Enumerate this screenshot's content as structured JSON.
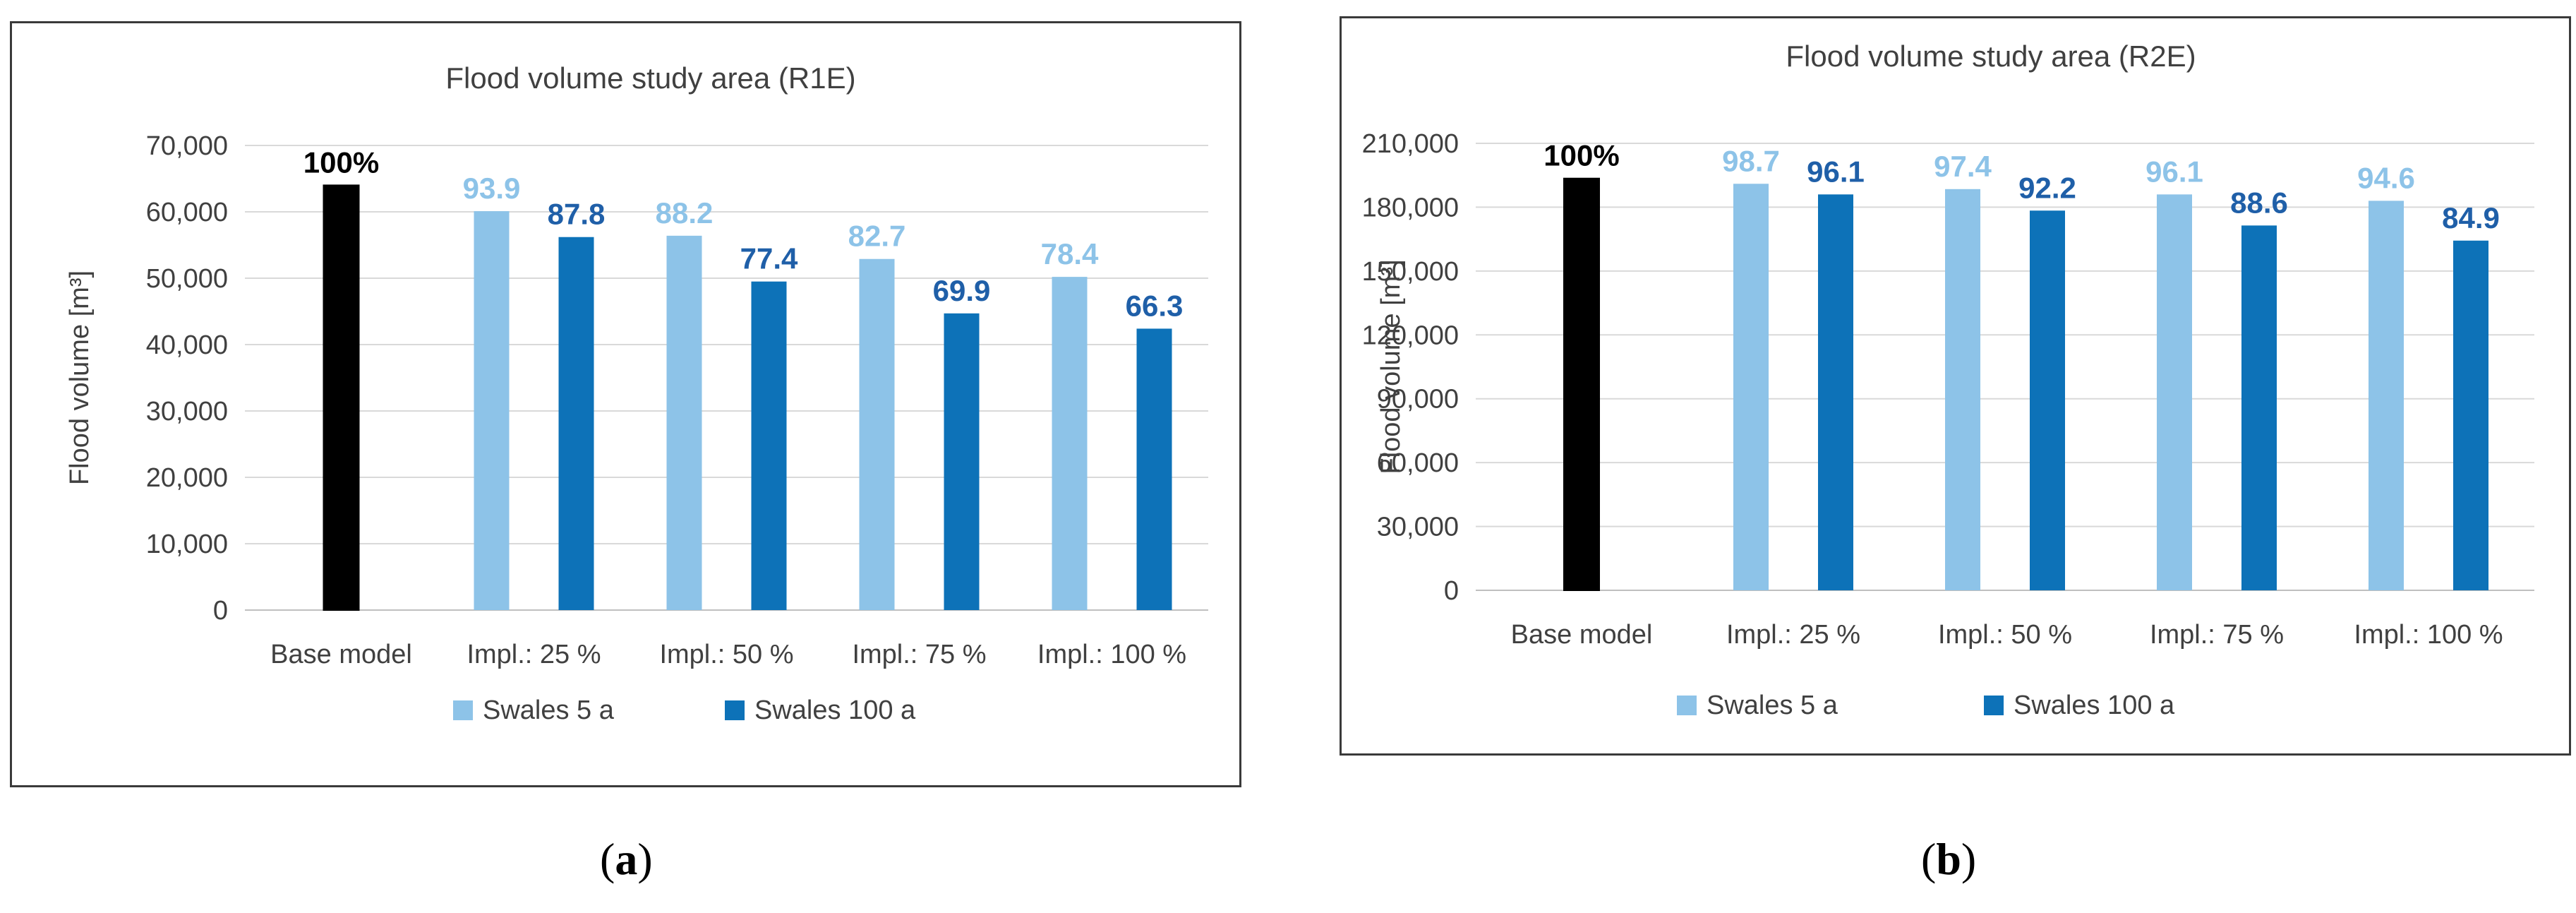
{
  "colors": {
    "base": "#000000",
    "s5": "#8dc3e8",
    "s100": "#0d72b8",
    "s5label": "#8dc3e8",
    "s100label": "#1f5fa8",
    "baselabel": "#000000",
    "grid": "#d9d9d9",
    "axis": "#bfbfbf"
  },
  "captions": {
    "a_open": "(",
    "a_letter": "a",
    "a_close": ")",
    "b_open": "(",
    "b_letter": "b",
    "b_close": ")"
  },
  "chart_data": [
    {
      "type": "bar",
      "title": "Flood volume study area (R1E)",
      "ylabel": "Flood volume  [m³]",
      "xlabel": "",
      "categories": [
        "Base model",
        "Impl.: 25 %",
        "Impl.: 50 %",
        "Impl.: 75 %",
        "Impl.: 100 %"
      ],
      "ylim": [
        0,
        70000
      ],
      "yticks": [
        0,
        10000,
        20000,
        30000,
        40000,
        50000,
        60000,
        70000
      ],
      "ytick_labels": [
        "0",
        "10,000",
        "20,000",
        "30,000",
        "40,000",
        "50,000",
        "60,000",
        "70,000"
      ],
      "grid": true,
      "legend_position": "bottom",
      "base": {
        "value": 64000,
        "label": "100%"
      },
      "series": [
        {
          "name": "Swales 5 a",
          "values": [
            null,
            60100,
            56400,
            52900,
            50200
          ],
          "labels": [
            "",
            "93.9",
            "88.2",
            "82.7",
            "78.4"
          ]
        },
        {
          "name": "Swales 100 a",
          "values": [
            null,
            56200,
            49500,
            44700,
            42400
          ],
          "labels": [
            "",
            "87.8",
            "77.4",
            "69.9",
            "66.3"
          ]
        }
      ]
    },
    {
      "type": "bar",
      "title": "Flood volume study area (R2E)",
      "ylabel": "Flood volume [m³]",
      "xlabel": "",
      "categories": [
        "Base model",
        "Impl.: 25 %",
        "Impl.: 50 %",
        "Impl.: 75 %",
        "Impl.: 100 %"
      ],
      "ylim": [
        0,
        210000
      ],
      "yticks": [
        0,
        30000,
        60000,
        90000,
        120000,
        150000,
        180000,
        210000
      ],
      "ytick_labels": [
        "0",
        "30,000",
        "60,000",
        "90,000",
        "120,000",
        "150,000",
        "180,000",
        "210,000"
      ],
      "grid": true,
      "legend_position": "bottom",
      "base": {
        "value": 193500,
        "label": "100%"
      },
      "series": [
        {
          "name": "Swales 5 a",
          "values": [
            null,
            191000,
            188500,
            186000,
            183000
          ],
          "labels": [
            "",
            "98.7",
            "97.4",
            "96.1",
            "94.6"
          ]
        },
        {
          "name": "Swales 100 a",
          "values": [
            null,
            186000,
            178400,
            171400,
            164300
          ],
          "labels": [
            "",
            "96.1",
            "92.2",
            "88.6",
            "84.9"
          ]
        }
      ]
    }
  ]
}
